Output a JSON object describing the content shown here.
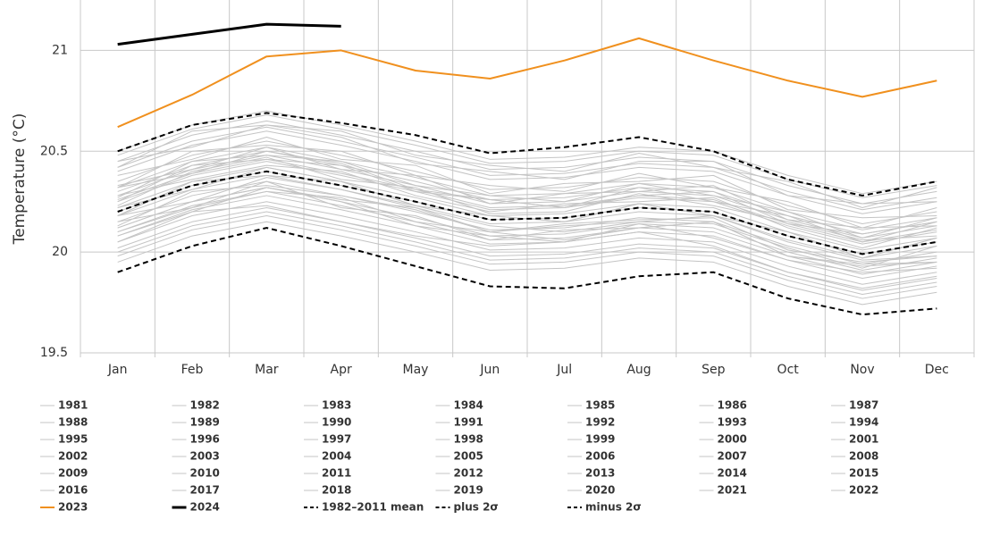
{
  "chart_data": {
    "type": "line",
    "ylabel": "Temperature (°C)",
    "categories": [
      "Jan",
      "Feb",
      "Mar",
      "Apr",
      "May",
      "Jun",
      "Jul",
      "Aug",
      "Sep",
      "Oct",
      "Nov",
      "Dec"
    ],
    "ylim": [
      19.5,
      21.25
    ],
    "yticks": [
      19.5,
      20,
      20.5,
      21
    ],
    "grid": true,
    "series": [
      {
        "name": "1981",
        "color": "#c4c4c4",
        "width": 1,
        "dash": false,
        "values": [
          20.0,
          20.13,
          20.2,
          20.13,
          20.05,
          19.96,
          19.97,
          20.02,
          20.0,
          19.88,
          19.79,
          19.85
        ]
      },
      {
        "name": "1982",
        "color": "#c4c4c4",
        "width": 1,
        "dash": false,
        "values": [
          20.05,
          20.18,
          20.25,
          20.18,
          20.1,
          20.01,
          20.02,
          20.07,
          20.05,
          19.93,
          19.84,
          19.9
        ]
      },
      {
        "name": "1983",
        "color": "#c4c4c4",
        "width": 1,
        "dash": false,
        "values": [
          20.15,
          20.28,
          20.35,
          20.28,
          20.2,
          20.11,
          20.12,
          20.17,
          20.15,
          20.03,
          19.94,
          20.0
        ]
      },
      {
        "name": "1984",
        "color": "#c4c4c4",
        "width": 1,
        "dash": false,
        "values": [
          19.98,
          20.11,
          20.18,
          20.11,
          20.03,
          19.94,
          19.95,
          20.0,
          19.98,
          19.86,
          19.77,
          19.83
        ]
      },
      {
        "name": "1985",
        "color": "#c4c4c4",
        "width": 1,
        "dash": false,
        "values": [
          19.95,
          20.08,
          20.15,
          20.08,
          20.0,
          19.91,
          19.92,
          19.97,
          19.95,
          19.83,
          19.74,
          19.8
        ]
      },
      {
        "name": "1986",
        "color": "#c4c4c4",
        "width": 1,
        "dash": false,
        "values": [
          20.02,
          20.15,
          20.22,
          20.15,
          20.07,
          19.98,
          19.99,
          20.04,
          20.02,
          19.9,
          19.81,
          19.87
        ]
      },
      {
        "name": "1987",
        "color": "#c4c4c4",
        "width": 1,
        "dash": false,
        "values": [
          20.25,
          20.38,
          20.45,
          20.38,
          20.3,
          20.21,
          20.22,
          20.27,
          20.25,
          20.13,
          20.04,
          20.1
        ]
      },
      {
        "name": "1988",
        "color": "#c4c4c4",
        "width": 1,
        "dash": false,
        "values": [
          20.2,
          20.33,
          20.4,
          20.33,
          20.25,
          20.16,
          20.17,
          20.22,
          20.2,
          20.08,
          19.99,
          20.05
        ]
      },
      {
        "name": "1989",
        "color": "#c4c4c4",
        "width": 1,
        "dash": false,
        "values": [
          20.08,
          20.2,
          20.23,
          20.15,
          20.08,
          20.03,
          20.05,
          20.1,
          20.03,
          19.9,
          19.82,
          19.88
        ]
      },
      {
        "name": "1990",
        "color": "#c4c4c4",
        "width": 1,
        "dash": false,
        "values": [
          20.12,
          20.25,
          20.37,
          20.31,
          20.22,
          20.13,
          20.1,
          20.15,
          20.18,
          20.05,
          19.96,
          19.98
        ]
      },
      {
        "name": "1991",
        "color": "#c4c4c4",
        "width": 1,
        "dash": false,
        "values": [
          20.12,
          20.25,
          20.32,
          20.25,
          20.17,
          20.08,
          20.09,
          20.14,
          20.12,
          20.0,
          19.91,
          19.97
        ]
      },
      {
        "name": "1992",
        "color": "#c4c4c4",
        "width": 1,
        "dash": false,
        "values": [
          20.08,
          20.21,
          20.28,
          20.21,
          20.13,
          20.04,
          20.05,
          20.1,
          20.08,
          19.96,
          19.87,
          19.93
        ]
      },
      {
        "name": "1993",
        "color": "#c4c4c4",
        "width": 1,
        "dash": false,
        "values": [
          20.1,
          20.23,
          20.3,
          20.23,
          20.15,
          20.06,
          20.07,
          20.12,
          20.1,
          19.98,
          19.89,
          19.95
        ]
      },
      {
        "name": "1994",
        "color": "#c4c4c4",
        "width": 1,
        "dash": false,
        "values": [
          20.15,
          20.22,
          20.3,
          20.27,
          20.15,
          20.1,
          20.06,
          20.12,
          20.15,
          19.98,
          19.93,
          19.95
        ]
      },
      {
        "name": "1995",
        "color": "#c4c4c4",
        "width": 1,
        "dash": false,
        "values": [
          20.18,
          20.31,
          20.38,
          20.31,
          20.23,
          20.14,
          20.15,
          20.2,
          20.18,
          20.06,
          19.97,
          20.03
        ]
      },
      {
        "name": "1996",
        "color": "#c4c4c4",
        "width": 1,
        "dash": false,
        "values": [
          20.05,
          20.2,
          20.32,
          20.25,
          20.13,
          20.08,
          20.05,
          20.14,
          20.07,
          19.96,
          19.9,
          19.92
        ]
      },
      {
        "name": "1997",
        "color": "#c4c4c4",
        "width": 1,
        "dash": false,
        "values": [
          20.3,
          20.43,
          20.5,
          20.43,
          20.35,
          20.26,
          20.27,
          20.32,
          20.3,
          20.18,
          20.09,
          20.15
        ]
      },
      {
        "name": "1998",
        "color": "#c4c4c4",
        "width": 1,
        "dash": false,
        "values": [
          20.35,
          20.48,
          20.55,
          20.48,
          20.4,
          20.31,
          20.32,
          20.37,
          20.35,
          20.23,
          20.14,
          20.2
        ]
      },
      {
        "name": "1999",
        "color": "#c4c4c4",
        "width": 1,
        "dash": false,
        "values": [
          20.18,
          20.25,
          20.32,
          20.26,
          20.22,
          20.1,
          20.13,
          20.15,
          20.14,
          20.02,
          19.92,
          20.03
        ]
      },
      {
        "name": "2000",
        "color": "#c4c4c4",
        "width": 1,
        "dash": false,
        "values": [
          20.1,
          20.22,
          20.35,
          20.22,
          20.18,
          20.06,
          20.11,
          20.12,
          20.15,
          19.98,
          19.94,
          19.95
        ]
      },
      {
        "name": "2001",
        "color": "#c4c4c4",
        "width": 1,
        "dash": false,
        "values": [
          20.22,
          20.35,
          20.42,
          20.35,
          20.27,
          20.18,
          20.19,
          20.24,
          20.22,
          20.1,
          20.01,
          20.07
        ]
      },
      {
        "name": "2002",
        "color": "#c4c4c4",
        "width": 1,
        "dash": false,
        "values": [
          20.28,
          20.36,
          20.43,
          20.4,
          20.28,
          20.2,
          20.24,
          20.25,
          20.27,
          20.12,
          20.02,
          20.12
        ]
      },
      {
        "name": "2003",
        "color": "#c4c4c4",
        "width": 1,
        "dash": false,
        "values": [
          20.28,
          20.41,
          20.48,
          20.41,
          20.33,
          20.24,
          20.25,
          20.3,
          20.28,
          20.16,
          20.07,
          20.13
        ]
      },
      {
        "name": "2004",
        "color": "#c4c4c4",
        "width": 1,
        "dash": false,
        "values": [
          20.23,
          20.4,
          20.47,
          20.36,
          20.32,
          20.19,
          20.2,
          20.29,
          20.23,
          20.15,
          20.06,
          20.08
        ]
      },
      {
        "name": "2005",
        "color": "#c4c4c4",
        "width": 1,
        "dash": false,
        "values": [
          20.32,
          20.39,
          20.5,
          20.44,
          20.31,
          20.26,
          20.22,
          20.28,
          20.3,
          20.14,
          20.09,
          20.15
        ]
      },
      {
        "name": "2006",
        "color": "#c4c4c4",
        "width": 1,
        "dash": false,
        "values": [
          20.26,
          20.39,
          20.46,
          20.39,
          20.31,
          20.22,
          20.23,
          20.28,
          20.26,
          20.14,
          20.05,
          20.11
        ]
      },
      {
        "name": "2007",
        "color": "#c4c4c4",
        "width": 1,
        "dash": false,
        "values": [
          20.22,
          20.31,
          20.42,
          20.35,
          20.23,
          20.18,
          20.15,
          20.24,
          20.18,
          20.1,
          19.97,
          20.07
        ]
      },
      {
        "name": "2008",
        "color": "#c4c4c4",
        "width": 1,
        "dash": false,
        "values": [
          20.13,
          20.3,
          20.33,
          20.28,
          20.21,
          20.1,
          20.14,
          20.16,
          20.17,
          20.01,
          19.95,
          19.98
        ]
      },
      {
        "name": "2009",
        "color": "#c4c4c4",
        "width": 1,
        "dash": false,
        "values": [
          20.27,
          20.45,
          20.48,
          20.45,
          20.33,
          20.28,
          20.25,
          20.34,
          20.28,
          20.2,
          20.07,
          20.17
        ]
      },
      {
        "name": "2010",
        "color": "#c4c4c4",
        "width": 1,
        "dash": false,
        "values": [
          20.32,
          20.45,
          20.52,
          20.45,
          20.37,
          20.28,
          20.29,
          20.34,
          20.32,
          20.2,
          20.11,
          20.17
        ]
      },
      {
        "name": "2011",
        "color": "#c4c4c4",
        "width": 1,
        "dash": false,
        "values": [
          20.18,
          20.35,
          20.38,
          20.35,
          20.23,
          20.18,
          20.15,
          20.24,
          20.18,
          20.1,
          19.97,
          20.07
        ]
      },
      {
        "name": "2012",
        "color": "#c4c4c4",
        "width": 1,
        "dash": false,
        "values": [
          20.25,
          20.43,
          20.46,
          20.43,
          20.3,
          20.26,
          20.22,
          20.32,
          20.25,
          20.18,
          20.05,
          20.15
        ]
      },
      {
        "name": "2013",
        "color": "#c4c4c4",
        "width": 1,
        "dash": false,
        "values": [
          20.33,
          20.41,
          20.52,
          20.41,
          20.38,
          20.24,
          20.29,
          20.3,
          20.33,
          20.16,
          20.12,
          20.13
        ]
      },
      {
        "name": "2014",
        "color": "#c4c4c4",
        "width": 1,
        "dash": false,
        "values": [
          20.38,
          20.46,
          20.57,
          20.46,
          20.43,
          20.29,
          20.34,
          20.35,
          20.38,
          20.21,
          20.17,
          20.18
        ]
      },
      {
        "name": "2015",
        "color": "#c4c4c4",
        "width": 1,
        "dash": false,
        "values": [
          20.45,
          20.58,
          20.65,
          20.58,
          20.5,
          20.41,
          20.42,
          20.47,
          20.45,
          20.33,
          20.24,
          20.3
        ]
      },
      {
        "name": "2016",
        "color": "#c4c4c4",
        "width": 1,
        "dash": false,
        "values": [
          20.5,
          20.63,
          20.7,
          20.63,
          20.55,
          20.46,
          20.47,
          20.52,
          20.5,
          20.38,
          20.29,
          20.35
        ]
      },
      {
        "name": "2017",
        "color": "#c4c4c4",
        "width": 1,
        "dash": false,
        "values": [
          20.42,
          20.55,
          20.62,
          20.55,
          20.47,
          20.38,
          20.39,
          20.44,
          20.42,
          20.3,
          20.21,
          20.27
        ]
      },
      {
        "name": "2018",
        "color": "#c4c4c4",
        "width": 1,
        "dash": false,
        "values": [
          20.32,
          20.5,
          20.53,
          20.5,
          20.38,
          20.33,
          20.3,
          20.39,
          20.32,
          20.25,
          20.12,
          20.22
        ]
      },
      {
        "name": "2019",
        "color": "#c4c4c4",
        "width": 1,
        "dash": false,
        "values": [
          20.42,
          20.6,
          20.63,
          20.6,
          20.48,
          20.43,
          20.4,
          20.49,
          20.42,
          20.35,
          20.22,
          20.32
        ]
      },
      {
        "name": "2020",
        "color": "#c4c4c4",
        "width": 1,
        "dash": false,
        "values": [
          20.48,
          20.61,
          20.68,
          20.61,
          20.53,
          20.44,
          20.45,
          20.5,
          20.48,
          20.36,
          20.27,
          20.33
        ]
      },
      {
        "name": "2021",
        "color": "#c4c4c4",
        "width": 1,
        "dash": false,
        "values": [
          20.4,
          20.53,
          20.6,
          20.53,
          20.45,
          20.36,
          20.37,
          20.42,
          20.4,
          20.28,
          20.19,
          20.25
        ]
      },
      {
        "name": "2022",
        "color": "#c4c4c4",
        "width": 1,
        "dash": false,
        "values": [
          20.45,
          20.52,
          20.63,
          20.57,
          20.44,
          20.4,
          20.36,
          20.45,
          20.45,
          20.28,
          20.24,
          20.25
        ]
      },
      {
        "name": "2023",
        "color": "#f0901e",
        "width": 2,
        "dash": false,
        "values": [
          20.62,
          20.78,
          20.97,
          21.0,
          20.9,
          20.86,
          20.95,
          21.06,
          20.95,
          20.85,
          20.77,
          20.85
        ]
      },
      {
        "name": "2024",
        "color": "#000000",
        "width": 3,
        "dash": false,
        "values": [
          21.03,
          21.08,
          21.13,
          21.12,
          null,
          null,
          null,
          null,
          null,
          null,
          null,
          null
        ]
      },
      {
        "name": "1982–2011 mean",
        "color": "#000000",
        "width": 2,
        "dash": true,
        "values": [
          20.2,
          20.33,
          20.4,
          20.33,
          20.25,
          20.16,
          20.17,
          20.22,
          20.2,
          20.08,
          19.99,
          20.05
        ]
      },
      {
        "name": "plus 2σ",
        "color": "#000000",
        "width": 2,
        "dash": true,
        "values": [
          20.5,
          20.63,
          20.69,
          20.64,
          20.58,
          20.49,
          20.52,
          20.57,
          20.5,
          20.36,
          20.28,
          20.35
        ]
      },
      {
        "name": "minus 2σ",
        "color": "#000000",
        "width": 2,
        "dash": true,
        "values": [
          19.9,
          20.03,
          20.12,
          20.03,
          19.93,
          19.83,
          19.82,
          19.88,
          19.9,
          19.77,
          19.69,
          19.72
        ]
      }
    ]
  }
}
